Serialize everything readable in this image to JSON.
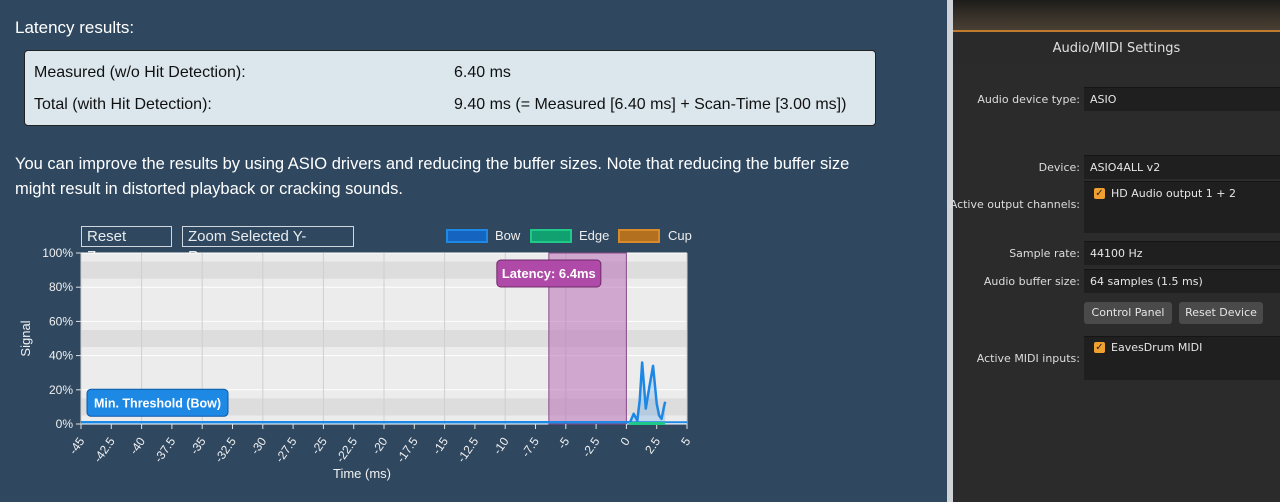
{
  "latency": {
    "heading": "Latency results:",
    "measured_label": "Measured (w/o Hit Detection):",
    "measured_value": "6.40 ms",
    "total_label": "Total (with Hit Detection):",
    "total_value": "9.40 ms (= Measured [6.40 ms] + Scan-Time [3.00 ms])"
  },
  "note": {
    "line1": "You can improve the results by using ASIO drivers and reducing the buffer sizes. Note that reducing the buffer size",
    "line2": "might result in distorted playback or cracking sounds."
  },
  "chart_toolbar": {
    "reset_zoom": "Reset Zoom",
    "zoom_y": "Zoom Selected Y-Range"
  },
  "chart_data": {
    "type": "line",
    "xlabel": "Time (ms)",
    "ylabel": "Signal",
    "xlim": [
      -45,
      5
    ],
    "ylim": [
      0,
      100
    ],
    "x_ticks": [
      "-45",
      "-42.5",
      "-40",
      "-37.5",
      "-35",
      "-32.5",
      "-30",
      "-27.5",
      "-25",
      "-22.5",
      "-20",
      "-17.5",
      "-15",
      "-12.5",
      "-10",
      "-7.5",
      "-5",
      "-2.5",
      "0",
      "2.5",
      "5"
    ],
    "y_ticks": [
      "0%",
      "20%",
      "40%",
      "60%",
      "80%",
      "100%"
    ],
    "legend": [
      {
        "name": "Bow",
        "color": "#1e88e5"
      },
      {
        "name": "Edge",
        "color": "#1fc98a"
      },
      {
        "name": "Cup",
        "color": "#d98a2b"
      }
    ],
    "latency_band": {
      "from": -6.4,
      "to": 0,
      "label": "Latency: 6.4ms",
      "color": "#b86fb8"
    },
    "threshold": {
      "label": "Min. Threshold (Bow)",
      "value": 1,
      "color": "#1e88e5"
    },
    "series": [
      {
        "name": "Bow",
        "color": "#1e88e5",
        "points": [
          [
            -45,
            1
          ],
          [
            0,
            1
          ],
          [
            0.3,
            1
          ],
          [
            0.6,
            6
          ],
          [
            0.9,
            2
          ],
          [
            1.1,
            14
          ],
          [
            1.3,
            36
          ],
          [
            1.6,
            9
          ],
          [
            1.9,
            22
          ],
          [
            2.2,
            34
          ],
          [
            2.5,
            12
          ],
          [
            2.7,
            5
          ],
          [
            2.9,
            3
          ],
          [
            3.1,
            10
          ],
          [
            3.2,
            13
          ]
        ]
      },
      {
        "name": "Edge",
        "color": "#1fc98a",
        "points": [
          [
            0.2,
            0.3
          ],
          [
            3.2,
            0.3
          ]
        ]
      }
    ]
  },
  "audio_midi": {
    "title": "Audio/MIDI Settings",
    "device_type_label": "Audio device type:",
    "device_type_value": "ASIO",
    "device_label": "Device:",
    "device_value": "ASIO4ALL v2",
    "output_channels_label": "Active output channels:",
    "output_channel_item": "HD Audio output 1 + 2",
    "sample_rate_label": "Sample rate:",
    "sample_rate_value": "44100 Hz",
    "buffer_size_label": "Audio buffer size:",
    "buffer_size_value": "64 samples (1.5 ms)",
    "control_panel_button": "Control Panel",
    "reset_device_button": "Reset Device",
    "midi_inputs_label": "Active MIDI inputs:",
    "midi_input_item": "EavesDrum MIDI"
  }
}
